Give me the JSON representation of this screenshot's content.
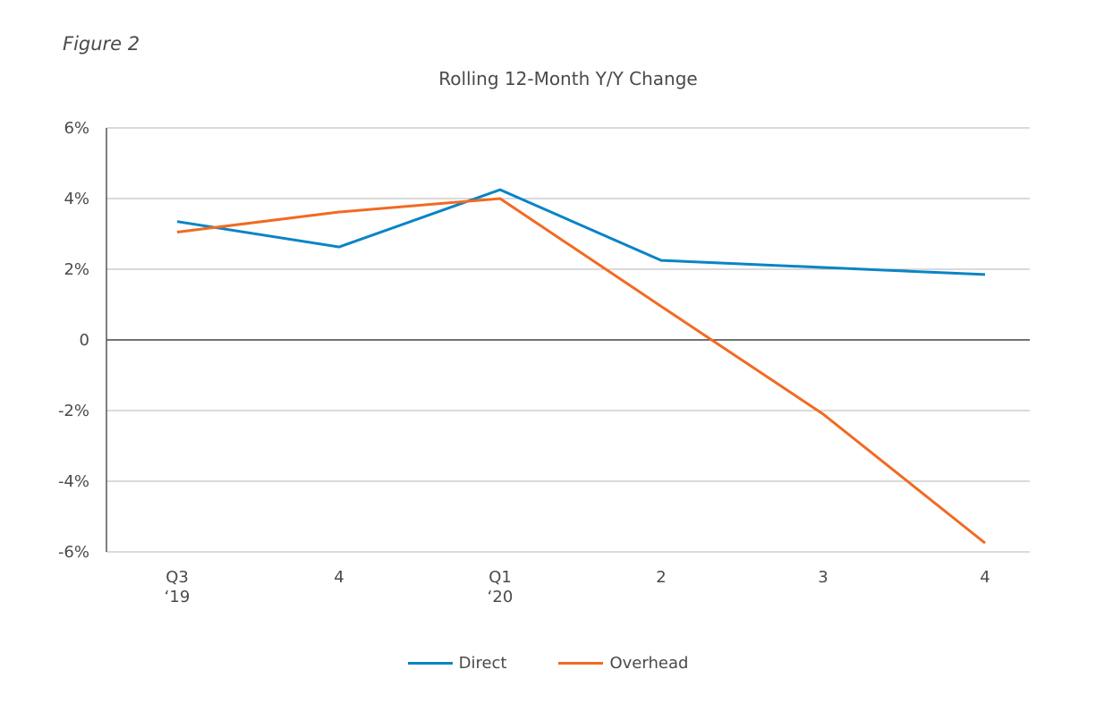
{
  "figure_label": "Figure 2",
  "chart_data": {
    "type": "line",
    "title": "Rolling 12-Month Y/Y Change",
    "xlabel": "",
    "ylabel": "",
    "categories": [
      [
        "Q3",
        "‘19"
      ],
      [
        "4"
      ],
      [
        "Q1",
        "‘20"
      ],
      [
        "2"
      ],
      [
        "3"
      ],
      [
        "4"
      ]
    ],
    "ylim": [
      -6,
      6
    ],
    "yticks": [
      6,
      4,
      2,
      0,
      -2,
      -4,
      -6
    ],
    "ytick_labels": [
      "6%",
      "4%",
      "2%",
      "0",
      "-2%",
      "-4%",
      "-6%"
    ],
    "grid": true,
    "legend_position": "bottom-center",
    "series": [
      {
        "name": "Direct",
        "color": "#0a84c6",
        "values": [
          3.35,
          2.63,
          4.25,
          2.25,
          2.05,
          1.85
        ]
      },
      {
        "name": "Overhead",
        "color": "#f26a21",
        "values": [
          3.05,
          3.62,
          4.0,
          0.95,
          -2.1,
          -5.75
        ]
      }
    ]
  }
}
